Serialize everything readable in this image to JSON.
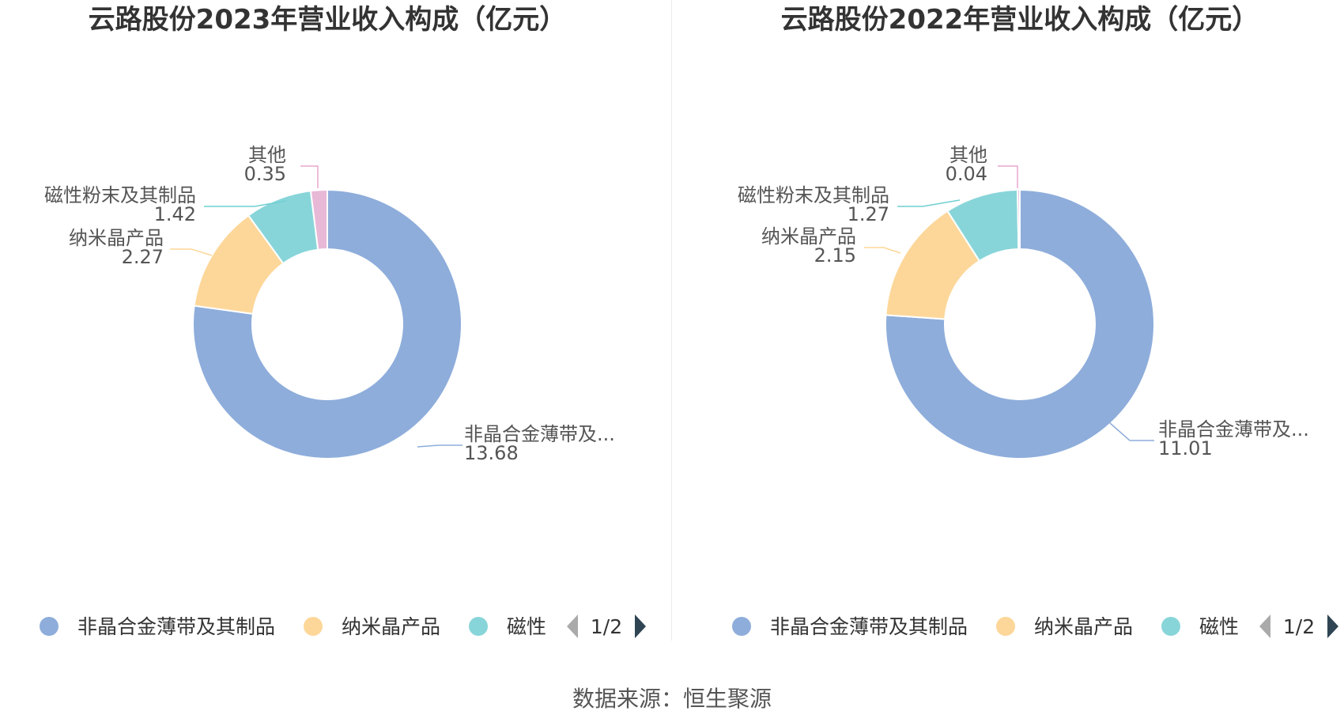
{
  "source_text": "数据来源：恒生聚源",
  "legend_page": "1/2",
  "chart_data": [
    {
      "type": "pie",
      "title": "云路股份2023年营业收入构成（亿元）",
      "slices": [
        {
          "label": "非晶合金薄带及其制品",
          "display_label": "非晶合金薄带及...",
          "value": 13.68,
          "value_text": "13.68"
        },
        {
          "label": "纳米晶产品",
          "display_label": "纳米晶产品",
          "value": 2.27,
          "value_text": "2.27"
        },
        {
          "label": "磁性粉末及其制品",
          "display_label": "磁性粉末及其制品",
          "value": 1.42,
          "value_text": "1.42"
        },
        {
          "label": "其他",
          "display_label": "其他",
          "value": 0.35,
          "value_text": "0.35"
        }
      ],
      "legend_entries": [
        "非晶合金薄带及其制品",
        "纳米晶产品",
        "磁性"
      ]
    },
    {
      "type": "pie",
      "title": "云路股份2022年营业收入构成（亿元）",
      "slices": [
        {
          "label": "非晶合金薄带及其制品",
          "display_label": "非晶合金薄带及...",
          "value": 11.01,
          "value_text": "11.01"
        },
        {
          "label": "纳米晶产品",
          "display_label": "纳米晶产品",
          "value": 2.15,
          "value_text": "2.15"
        },
        {
          "label": "磁性粉末及其制品",
          "display_label": "磁性粉末及其制品",
          "value": 1.27,
          "value_text": "1.27"
        },
        {
          "label": "其他",
          "display_label": "其他",
          "value": 0.04,
          "value_text": "0.04"
        }
      ],
      "legend_entries": [
        "非晶合金薄带及其制品",
        "纳米晶产品",
        "磁性"
      ]
    }
  ],
  "colors": [
    "#8eaddb",
    "#fdd799",
    "#88d5d9",
    "#e8b8d7"
  ],
  "label_line_colors": [
    "#8eaddb",
    "#fdd799",
    "#6fcfd2",
    "#e8a6cf"
  ]
}
